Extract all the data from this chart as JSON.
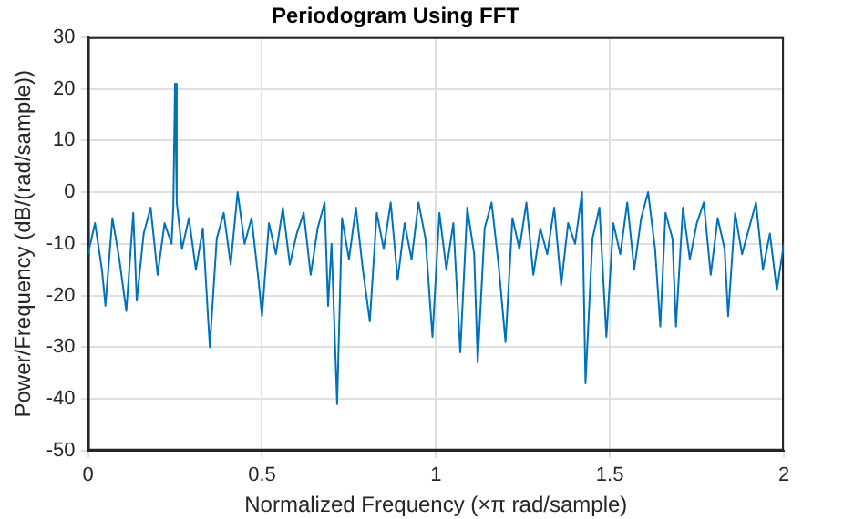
{
  "chart_data": {
    "type": "line",
    "title": "Periodogram Using FFT",
    "xlabel": "Normalized Frequency (×π rad/sample)",
    "ylabel": "Power/Frequency (dB/(rad/sample))",
    "xlim": [
      0,
      2
    ],
    "xticks": [
      0,
      0.5,
      1,
      1.5,
      2
    ],
    "ylim": [
      -50,
      30
    ],
    "yticks": [
      -50,
      -40,
      -30,
      -20,
      -10,
      0,
      10,
      20,
      30
    ],
    "grid": true,
    "marker": "none",
    "line_style": "solid",
    "series": [
      {
        "color": "#0072bd",
        "x": [
          0,
          0.02,
          0.04,
          0.05,
          0.07,
          0.09,
          0.11,
          0.13,
          0.14,
          0.16,
          0.18,
          0.2,
          0.22,
          0.24,
          0.245,
          0.25,
          0.255,
          0.27,
          0.29,
          0.31,
          0.33,
          0.35,
          0.37,
          0.39,
          0.41,
          0.43,
          0.45,
          0.47,
          0.49,
          0.5,
          0.52,
          0.54,
          0.56,
          0.58,
          0.6,
          0.62,
          0.64,
          0.66,
          0.68,
          0.69,
          0.7,
          0.716,
          0.73,
          0.75,
          0.77,
          0.79,
          0.81,
          0.83,
          0.85,
          0.87,
          0.89,
          0.91,
          0.93,
          0.95,
          0.97,
          0.99,
          1.01,
          1.03,
          1.05,
          1.07,
          1.09,
          1.11,
          1.12,
          1.14,
          1.16,
          1.18,
          1.2,
          1.22,
          1.24,
          1.26,
          1.28,
          1.3,
          1.32,
          1.34,
          1.36,
          1.38,
          1.4,
          1.42,
          1.43,
          1.45,
          1.47,
          1.49,
          1.51,
          1.53,
          1.55,
          1.57,
          1.59,
          1.61,
          1.63,
          1.645,
          1.66,
          1.68,
          1.69,
          1.71,
          1.73,
          1.75,
          1.77,
          1.79,
          1.81,
          1.83,
          1.84,
          1.86,
          1.88,
          1.9,
          1.92,
          1.94,
          1.96,
          1.98,
          2
        ],
        "values": [
          -12,
          -6,
          -15,
          -22,
          -5,
          -13,
          -23,
          -4,
          -21,
          -8,
          -3,
          -16,
          -6,
          -10,
          -3,
          21,
          -2,
          -11,
          -5,
          -15,
          -7,
          -30,
          -9,
          -4,
          -14,
          0,
          -10,
          -5,
          -17,
          -24,
          -6,
          -12,
          -3,
          -14,
          -8,
          -4,
          -16,
          -7,
          -2,
          -22,
          -10,
          -41,
          -5,
          -13,
          -3,
          -15,
          -25,
          -4,
          -11,
          -2,
          -17,
          -6,
          -13,
          -2,
          -9,
          -28,
          -4,
          -15,
          -6,
          -31,
          -3,
          -12,
          -33,
          -7,
          -2,
          -14,
          -29,
          -5,
          -11,
          -2,
          -16,
          -7,
          -12,
          -3,
          -18,
          -6,
          -10,
          0,
          -37,
          -9,
          -3,
          -28,
          -6,
          -12,
          -2,
          -15,
          -5,
          0,
          -11,
          -26,
          -4,
          -9,
          -26,
          -3,
          -13,
          -6,
          -2,
          -16,
          -5,
          -11,
          -24,
          -4,
          -12,
          -7,
          -2,
          -15,
          -8,
          -19,
          -10
        ]
      }
    ]
  }
}
